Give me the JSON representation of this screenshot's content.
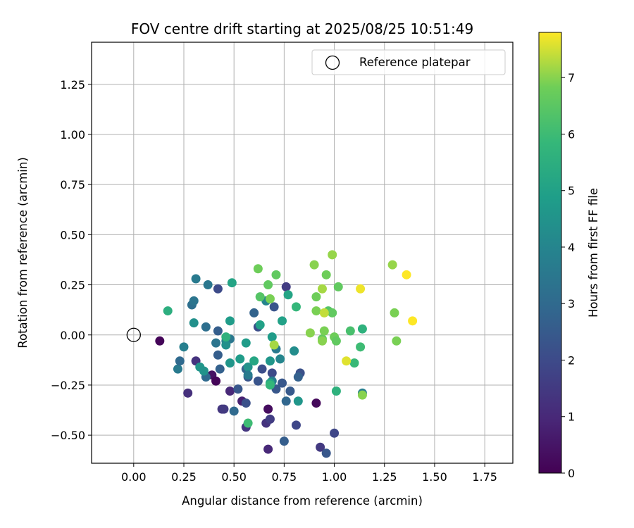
{
  "chart_data": {
    "type": "scatter",
    "title": "FOV centre drift starting at 2025/08/25 10:51:49",
    "xlabel": "Angular distance from reference (arcmin)",
    "ylabel": "Rotation from reference (arcmin)",
    "xlim": [
      -0.21,
      1.89
    ],
    "ylim": [
      -0.64,
      1.46
    ],
    "xticks": [
      "0.00",
      "0.25",
      "0.50",
      "0.75",
      "1.00",
      "1.25",
      "1.50",
      "1.75"
    ],
    "xtick_values": [
      0,
      0.25,
      0.5,
      0.75,
      1.0,
      1.25,
      1.5,
      1.75
    ],
    "yticks": [
      "−0.50",
      "−0.25",
      "0.00",
      "0.25",
      "0.50",
      "0.75",
      "1.00",
      "1.25"
    ],
    "ytick_values": [
      -0.5,
      -0.25,
      0,
      0.25,
      0.5,
      0.75,
      1.0,
      1.25
    ],
    "grid": true,
    "legend": {
      "placement": "top-right",
      "entries": [
        "Reference platepar"
      ]
    },
    "reference_point": {
      "x": 0.0,
      "y": 0.0
    },
    "colorbar": {
      "label": "Hours from first FF file",
      "colormap": "viridis",
      "range": [
        0,
        7.8
      ],
      "ticks": [
        "0",
        "1",
        "2",
        "3",
        "4",
        "5",
        "6",
        "7"
      ],
      "tick_values": [
        0,
        1,
        2,
        3,
        4,
        5,
        6,
        7
      ]
    },
    "points": [
      {
        "x": 0.13,
        "y": -0.03,
        "h": 0.1
      },
      {
        "x": 0.27,
        "y": -0.29,
        "h": 1.2
      },
      {
        "x": 0.31,
        "y": -0.13,
        "h": 1.3
      },
      {
        "x": 0.39,
        "y": -0.2,
        "h": 0.4
      },
      {
        "x": 0.41,
        "y": -0.23,
        "h": 0.1
      },
      {
        "x": 0.44,
        "y": -0.37,
        "h": 1.4
      },
      {
        "x": 0.45,
        "y": -0.37,
        "h": 1.5
      },
      {
        "x": 0.48,
        "y": -0.28,
        "h": 1.0
      },
      {
        "x": 0.54,
        "y": -0.33,
        "h": 0.8
      },
      {
        "x": 0.56,
        "y": -0.34,
        "h": 2.2
      },
      {
        "x": 0.56,
        "y": -0.46,
        "h": 1.4
      },
      {
        "x": 0.67,
        "y": -0.37,
        "h": 0.3
      },
      {
        "x": 0.66,
        "y": -0.44,
        "h": 1.3
      },
      {
        "x": 0.68,
        "y": -0.42,
        "h": 1.6
      },
      {
        "x": 0.67,
        "y": -0.57,
        "h": 1.0
      },
      {
        "x": 0.75,
        "y": -0.53,
        "h": 2.6
      },
      {
        "x": 0.81,
        "y": -0.45,
        "h": 1.9
      },
      {
        "x": 0.91,
        "y": -0.34,
        "h": 0.2
      },
      {
        "x": 0.93,
        "y": -0.56,
        "h": 1.5
      },
      {
        "x": 0.96,
        "y": -0.59,
        "h": 2.4
      },
      {
        "x": 1.0,
        "y": -0.49,
        "h": 1.9
      },
      {
        "x": 0.42,
        "y": 0.23,
        "h": 2.0
      },
      {
        "x": 0.76,
        "y": 0.24,
        "h": 1.6
      },
      {
        "x": 0.62,
        "y": 0.04,
        "h": 2.1
      },
      {
        "x": 0.7,
        "y": 0.14,
        "h": 2.3
      },
      {
        "x": 0.6,
        "y": 0.11,
        "h": 2.8
      },
      {
        "x": 0.42,
        "y": 0.02,
        "h": 2.6
      },
      {
        "x": 0.43,
        "y": -0.17,
        "h": 2.7
      },
      {
        "x": 0.42,
        "y": -0.1,
        "h": 2.6
      },
      {
        "x": 0.5,
        "y": -0.38,
        "h": 3.0
      },
      {
        "x": 0.52,
        "y": -0.27,
        "h": 2.4
      },
      {
        "x": 0.57,
        "y": -0.21,
        "h": 2.3
      },
      {
        "x": 0.62,
        "y": -0.23,
        "h": 2.3
      },
      {
        "x": 0.64,
        "y": -0.17,
        "h": 2.1
      },
      {
        "x": 0.69,
        "y": -0.19,
        "h": 2.0
      },
      {
        "x": 0.71,
        "y": -0.27,
        "h": 2.4
      },
      {
        "x": 0.74,
        "y": -0.24,
        "h": 2.4
      },
      {
        "x": 0.76,
        "y": -0.33,
        "h": 2.9
      },
      {
        "x": 0.78,
        "y": -0.28,
        "h": 2.5
      },
      {
        "x": 0.83,
        "y": -0.19,
        "h": 2.2
      },
      {
        "x": 0.82,
        "y": -0.21,
        "h": 2.7
      },
      {
        "x": 0.56,
        "y": -0.17,
        "h": 2.8
      },
      {
        "x": 0.22,
        "y": -0.17,
        "h": 3.6
      },
      {
        "x": 0.23,
        "y": -0.13,
        "h": 3.0
      },
      {
        "x": 0.25,
        "y": -0.06,
        "h": 3.8
      },
      {
        "x": 0.29,
        "y": 0.15,
        "h": 3.2
      },
      {
        "x": 0.3,
        "y": 0.17,
        "h": 3.4
      },
      {
        "x": 0.31,
        "y": 0.28,
        "h": 3.6
      },
      {
        "x": 0.37,
        "y": 0.25,
        "h": 3.5
      },
      {
        "x": 0.36,
        "y": 0.04,
        "h": 3.2
      },
      {
        "x": 0.36,
        "y": -0.21,
        "h": 3.0
      },
      {
        "x": 0.41,
        "y": -0.04,
        "h": 3.4
      },
      {
        "x": 0.46,
        "y": -0.03,
        "h": 3.8
      },
      {
        "x": 0.48,
        "y": -0.02,
        "h": 3.5
      },
      {
        "x": 0.53,
        "y": -0.12,
        "h": 4.8
      },
      {
        "x": 0.57,
        "y": -0.16,
        "h": 4.5
      },
      {
        "x": 0.57,
        "y": -0.2,
        "h": 3.6
      },
      {
        "x": 0.66,
        "y": 0.17,
        "h": 4.0
      },
      {
        "x": 0.69,
        "y": -0.23,
        "h": 3.8
      },
      {
        "x": 0.71,
        "y": -0.07,
        "h": 3.6
      },
      {
        "x": 0.73,
        "y": -0.12,
        "h": 4.0
      },
      {
        "x": 0.8,
        "y": -0.08,
        "h": 4.3
      },
      {
        "x": 0.82,
        "y": -0.33,
        "h": 4.6
      },
      {
        "x": 1.14,
        "y": -0.29,
        "h": 3.8
      },
      {
        "x": 0.3,
        "y": 0.06,
        "h": 4.4
      },
      {
        "x": 0.33,
        "y": -0.16,
        "h": 4.6
      },
      {
        "x": 0.35,
        "y": -0.18,
        "h": 4.5
      },
      {
        "x": 0.46,
        "y": -0.05,
        "h": 4.4
      },
      {
        "x": 0.48,
        "y": 0.07,
        "h": 4.8
      },
      {
        "x": 0.48,
        "y": -0.14,
        "h": 4.6
      },
      {
        "x": 0.56,
        "y": -0.04,
        "h": 4.8
      },
      {
        "x": 0.63,
        "y": 0.05,
        "h": 5.0
      },
      {
        "x": 0.68,
        "y": -0.13,
        "h": 4.6
      },
      {
        "x": 0.69,
        "y": -0.01,
        "h": 4.8
      },
      {
        "x": 0.74,
        "y": 0.07,
        "h": 5.0
      },
      {
        "x": 0.77,
        "y": 0.2,
        "h": 5.1
      },
      {
        "x": 0.6,
        "y": -0.13,
        "h": 5.2
      },
      {
        "x": 0.68,
        "y": -0.24,
        "h": 5.2
      },
      {
        "x": 0.49,
        "y": 0.26,
        "h": 5.1
      },
      {
        "x": 0.17,
        "y": 0.12,
        "h": 5.5
      },
      {
        "x": 0.46,
        "y": -0.01,
        "h": 5.6
      },
      {
        "x": 0.57,
        "y": -0.44,
        "h": 6.0
      },
      {
        "x": 0.68,
        "y": -0.25,
        "h": 5.8
      },
      {
        "x": 0.81,
        "y": 0.14,
        "h": 5.8
      },
      {
        "x": 1.01,
        "y": -0.28,
        "h": 5.6
      },
      {
        "x": 1.1,
        "y": -0.14,
        "h": 5.9
      },
      {
        "x": 1.14,
        "y": 0.03,
        "h": 5.6
      },
      {
        "x": 1.13,
        "y": -0.06,
        "h": 6.0
      },
      {
        "x": 1.08,
        "y": 0.02,
        "h": 6.2
      },
      {
        "x": 0.63,
        "y": 0.19,
        "h": 6.4
      },
      {
        "x": 0.67,
        "y": 0.25,
        "h": 6.6
      },
      {
        "x": 0.62,
        "y": 0.33,
        "h": 6.8
      },
      {
        "x": 0.71,
        "y": 0.3,
        "h": 6.6
      },
      {
        "x": 0.68,
        "y": 0.18,
        "h": 6.9
      },
      {
        "x": 0.7,
        "y": -0.05,
        "h": 7.2
      },
      {
        "x": 0.9,
        "y": 0.35,
        "h": 7.0
      },
      {
        "x": 0.91,
        "y": 0.19,
        "h": 6.8
      },
      {
        "x": 0.91,
        "y": 0.12,
        "h": 6.9
      },
      {
        "x": 0.94,
        "y": 0.23,
        "h": 7.2
      },
      {
        "x": 0.96,
        "y": 0.3,
        "h": 6.8
      },
      {
        "x": 0.99,
        "y": 0.4,
        "h": 7.1
      },
      {
        "x": 0.97,
        "y": 0.12,
        "h": 6.4
      },
      {
        "x": 0.99,
        "y": 0.11,
        "h": 6.6
      },
      {
        "x": 0.95,
        "y": 0.11,
        "h": 7.4
      },
      {
        "x": 0.94,
        "y": -0.02,
        "h": 6.6
      },
      {
        "x": 0.95,
        "y": 0.02,
        "h": 6.9
      },
      {
        "x": 0.94,
        "y": -0.03,
        "h": 7.0
      },
      {
        "x": 0.88,
        "y": 0.01,
        "h": 7.0
      },
      {
        "x": 1.0,
        "y": -0.01,
        "h": 6.8
      },
      {
        "x": 1.01,
        "y": -0.03,
        "h": 6.6
      },
      {
        "x": 1.02,
        "y": 0.24,
        "h": 6.6
      },
      {
        "x": 1.06,
        "y": -0.13,
        "h": 7.6
      },
      {
        "x": 1.13,
        "y": 0.23,
        "h": 7.7
      },
      {
        "x": 1.14,
        "y": -0.3,
        "h": 7.0
      },
      {
        "x": 1.29,
        "y": 0.35,
        "h": 7.1
      },
      {
        "x": 1.3,
        "y": 0.11,
        "h": 6.9
      },
      {
        "x": 1.31,
        "y": -0.03,
        "h": 6.9
      },
      {
        "x": 1.36,
        "y": 0.3,
        "h": 7.8
      },
      {
        "x": 1.39,
        "y": 0.07,
        "h": 7.8
      }
    ]
  }
}
